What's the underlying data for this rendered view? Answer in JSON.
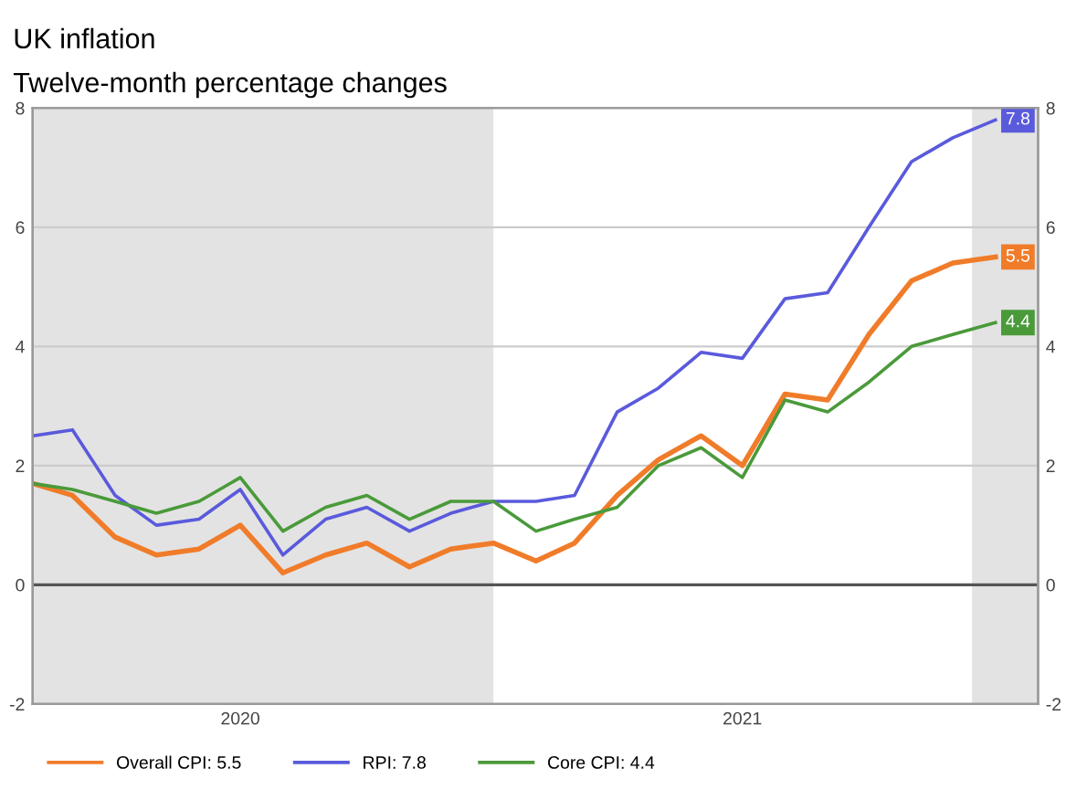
{
  "chart_data": {
    "type": "line",
    "title": "UK inflation",
    "subtitle": "Twelve-month percentage changes",
    "x": [
      "2020-02",
      "2020-03",
      "2020-04",
      "2020-05",
      "2020-06",
      "2020-07",
      "2020-08",
      "2020-09",
      "2020-10",
      "2020-11",
      "2020-12",
      "2021-01",
      "2021-02",
      "2021-03",
      "2021-04",
      "2021-05",
      "2021-06",
      "2021-07",
      "2021-08",
      "2021-09",
      "2021-10",
      "2021-11",
      "2021-12",
      "2022-01"
    ],
    "series": [
      {
        "name": "Overall CPI: 5.5",
        "color": "#f07c2a",
        "values": [
          1.7,
          1.5,
          0.8,
          0.5,
          0.6,
          1.0,
          0.2,
          0.5,
          0.7,
          0.3,
          0.6,
          0.7,
          0.4,
          0.7,
          1.5,
          2.1,
          2.5,
          2.0,
          3.2,
          3.1,
          4.2,
          5.1,
          5.4,
          5.5
        ],
        "value_labels": [
          null,
          null,
          null,
          null,
          null,
          null,
          null,
          null,
          null,
          null,
          null,
          null,
          null,
          null,
          null,
          null,
          null,
          null,
          null,
          null,
          null,
          null,
          null,
          "5.5"
        ]
      },
      {
        "name": "RPI: 7.8",
        "color": "#5a5adc",
        "values": [
          2.5,
          2.6,
          1.5,
          1.0,
          1.1,
          1.6,
          0.5,
          1.1,
          1.3,
          0.9,
          1.2,
          1.4,
          1.4,
          1.5,
          2.9,
          3.3,
          3.9,
          3.8,
          4.8,
          4.9,
          6.0,
          7.1,
          7.5,
          7.8
        ],
        "value_labels": [
          null,
          null,
          null,
          null,
          null,
          null,
          null,
          null,
          null,
          null,
          null,
          null,
          null,
          null,
          null,
          null,
          null,
          null,
          null,
          null,
          null,
          null,
          null,
          "7.8"
        ]
      },
      {
        "name": "Core CPI: 4.4",
        "color": "#4a9a3a",
        "values": [
          1.7,
          1.6,
          1.4,
          1.2,
          1.4,
          1.8,
          0.9,
          1.3,
          1.5,
          1.1,
          1.4,
          1.4,
          0.9,
          1.1,
          1.3,
          2.0,
          2.3,
          1.8,
          3.1,
          2.9,
          3.4,
          4.0,
          4.2,
          4.4
        ],
        "value_labels": [
          null,
          null,
          null,
          null,
          null,
          null,
          null,
          null,
          null,
          null,
          null,
          null,
          null,
          null,
          null,
          null,
          null,
          null,
          null,
          null,
          null,
          null,
          null,
          "4.4"
        ]
      }
    ],
    "xlim": [
      "2020-02-01",
      "2022-02-01"
    ],
    "xticks": [
      {
        "value": "2020-07-01",
        "label": "2020"
      },
      {
        "value": "2021-07-01",
        "label": "2021"
      }
    ],
    "ylim": [
      -2,
      8
    ],
    "yticks": [
      -2,
      0,
      2,
      4,
      6,
      8
    ],
    "y2lim": [
      -2,
      8
    ],
    "y2ticks": [
      -2,
      0,
      2,
      4,
      6,
      8
    ],
    "grid": "y",
    "legend": "bottom",
    "marker": "none",
    "line_style": "solid",
    "ref_lines": [
      {
        "axis": "y",
        "value": 0,
        "color": "#555555"
      }
    ],
    "bands": [
      {
        "axis": "x",
        "from": "2020-02-01",
        "to": "2021-01-01",
        "color": "#e3e3e3"
      },
      {
        "axis": "x",
        "from": "2021-12-15",
        "to": "2022-02-01",
        "color": "#e3e3e3"
      }
    ]
  }
}
